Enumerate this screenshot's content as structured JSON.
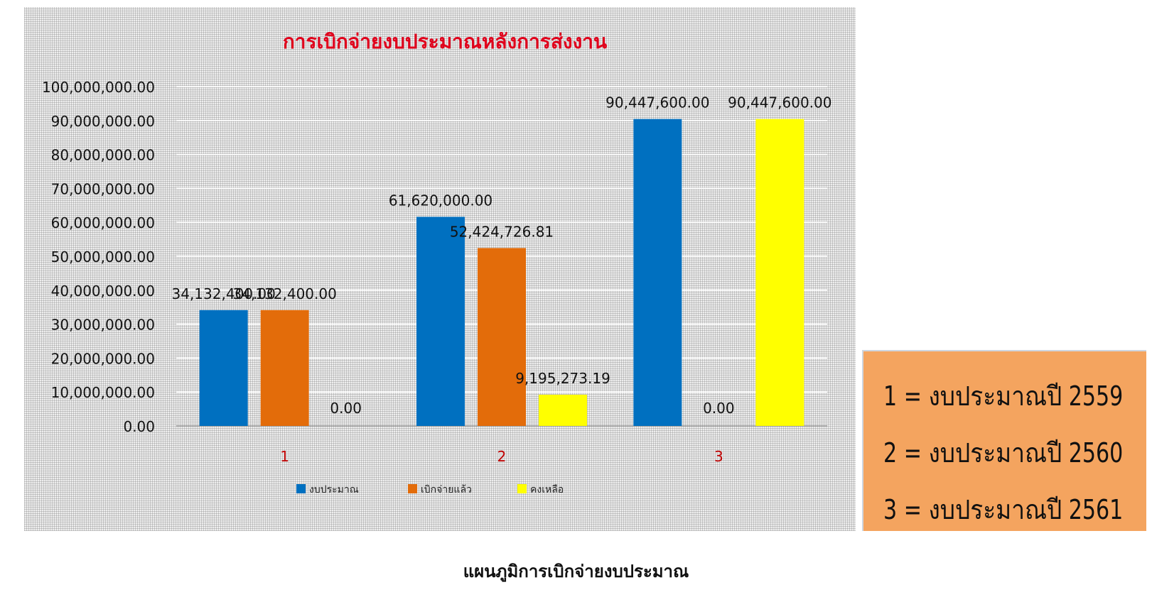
{
  "chart_data": {
    "type": "bar",
    "title": "การเบิกจ่ายงบประมาณหลังการส่งงาน",
    "categories": [
      "1",
      "2",
      "3"
    ],
    "series": [
      {
        "name": "งบประมาณ",
        "color": "#0070c0",
        "values": [
          34132400.0,
          61620000.0,
          90447600.0
        ],
        "labels": [
          "34,132,400.00",
          "61,620,000.00",
          "90,447,600.00"
        ]
      },
      {
        "name": "เบิกจ่ายแล้ว",
        "color": "#e36c0a",
        "values": [
          34132400.0,
          52424726.81,
          0.0
        ],
        "labels": [
          "34,132,400.00",
          "52,424,726.81",
          "0.00"
        ]
      },
      {
        "name": "คงเหลือ",
        "color": "#ffff00",
        "values": [
          0.0,
          9195273.19,
          90447600.0
        ],
        "labels": [
          "0.00",
          "9,195,273.19",
          "90,447,600.00"
        ]
      }
    ],
    "ylim": [
      0,
      100000000
    ],
    "yticks": [
      "0.00",
      "10,000,000.00",
      "20,000,000.00",
      "30,000,000.00",
      "40,000,000.00",
      "50,000,000.00",
      "60,000,000.00",
      "70,000,000.00",
      "80,000,000.00",
      "90,000,000.00",
      "100,000,000.00"
    ],
    "grid": true,
    "legend_position": "bottom",
    "title_color": "#e0001b",
    "category_label_color": "#c00000"
  },
  "legend_box": {
    "lines": [
      "1 = งบประมาณปี 2559",
      "2 = งบประมาณปี 2560",
      "3 = งบประมาณปี 2561"
    ],
    "background": "#f4a45f"
  },
  "caption": "แผนภูมิการเบิกจ่ายงบประมาณ"
}
